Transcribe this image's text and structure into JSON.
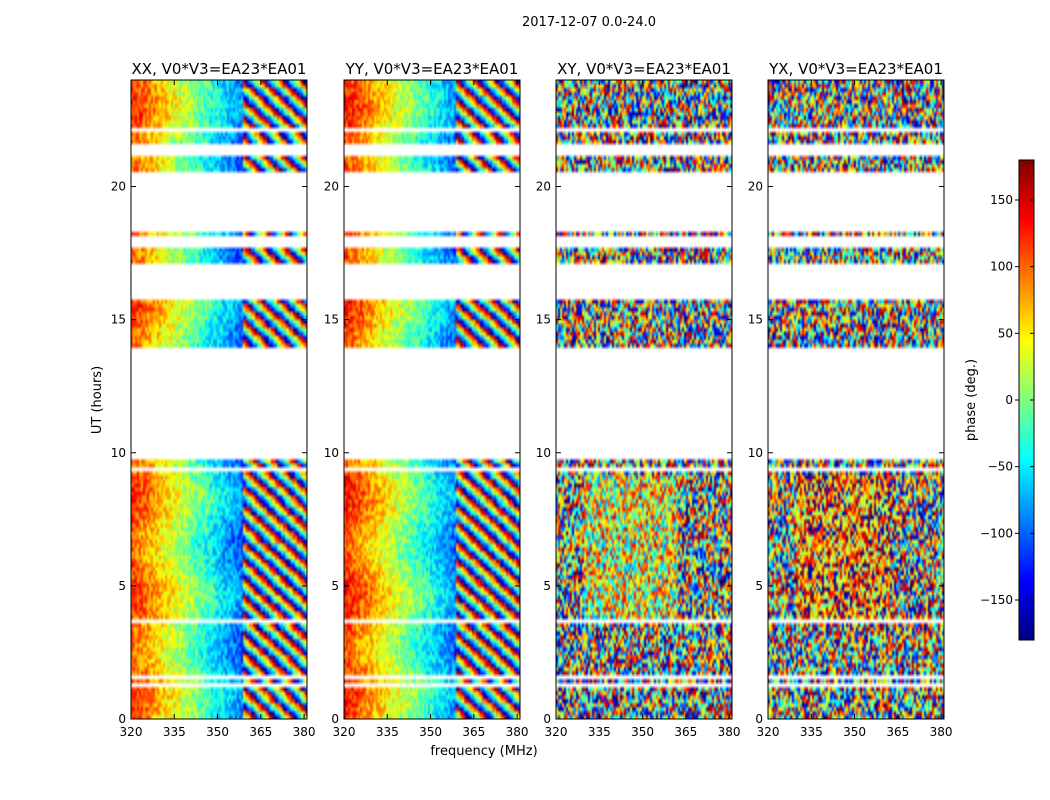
{
  "figure": {
    "suptitle": "2017-12-07 0.0-24.0",
    "xlabel": "frequency (MHz)",
    "ylabel": "UT (hours)"
  },
  "colorbar": {
    "label": "phase (deg.)",
    "range": [
      -180,
      180
    ],
    "ticks": [
      150,
      100,
      50,
      0,
      -50,
      -100,
      -150
    ],
    "tick_labels": [
      "150",
      "100",
      "50",
      "0",
      "−50",
      "−100",
      "−150"
    ],
    "colormap": "jet",
    "colors": [
      "#00007f",
      "#0000ff",
      "#007fff",
      "#00ffff",
      "#7fff7f",
      "#ffff00",
      "#ff7f00",
      "#ff0000",
      "#7f0000"
    ]
  },
  "chart_data": [
    {
      "type": "heatmap",
      "title": "XX, V0*V3=EA23*EA01",
      "pattern": "parallel",
      "xlim": [
        320,
        381
      ],
      "ylim": [
        0,
        24
      ],
      "xticks": [
        320,
        335,
        350,
        365,
        380
      ],
      "yticks": [
        0,
        5,
        10,
        15,
        20
      ],
      "xlabel": "",
      "ylabel": "UT (hours)"
    },
    {
      "type": "heatmap",
      "title": "YY, V0*V3=EA23*EA01",
      "pattern": "parallel",
      "xlim": [
        320,
        381
      ],
      "ylim": [
        0,
        24
      ],
      "xticks": [
        320,
        335,
        350,
        365,
        380
      ],
      "yticks": [
        0,
        5,
        10,
        15,
        20
      ],
      "xlabel": "frequency (MHz)",
      "ylabel": ""
    },
    {
      "type": "heatmap",
      "title": "XY, V0*V3=EA23*EA01",
      "pattern": "cross",
      "xlim": [
        320,
        381
      ],
      "ylim": [
        0,
        24
      ],
      "xticks": [
        320,
        335,
        350,
        365,
        380
      ],
      "yticks": [
        0,
        5,
        10,
        15,
        20
      ],
      "xlabel": "",
      "ylabel": ""
    },
    {
      "type": "heatmap",
      "title": "YX, V0*V3=EA23*EA01",
      "pattern": "cross",
      "xlim": [
        320,
        381
      ],
      "ylim": [
        0,
        24
      ],
      "xticks": [
        320,
        335,
        350,
        365,
        380
      ],
      "yticks": [
        0,
        5,
        10,
        15,
        20
      ],
      "xlabel": "",
      "ylabel": ""
    }
  ],
  "data_ranges_hours": [
    [
      0.0,
      1.15
    ],
    [
      1.4,
      1.55
    ],
    [
      1.6,
      2.5
    ],
    [
      2.6,
      3.4
    ],
    [
      3.5,
      3.65
    ],
    [
      3.8,
      9.25
    ],
    [
      9.5,
      9.75
    ],
    [
      14.0,
      15.7
    ],
    [
      17.15,
      17.65
    ],
    [
      18.1,
      18.3
    ],
    [
      20.6,
      21.2
    ],
    [
      21.6,
      22.1
    ],
    [
      22.2,
      22.45
    ],
    [
      22.55,
      24.0
    ]
  ]
}
